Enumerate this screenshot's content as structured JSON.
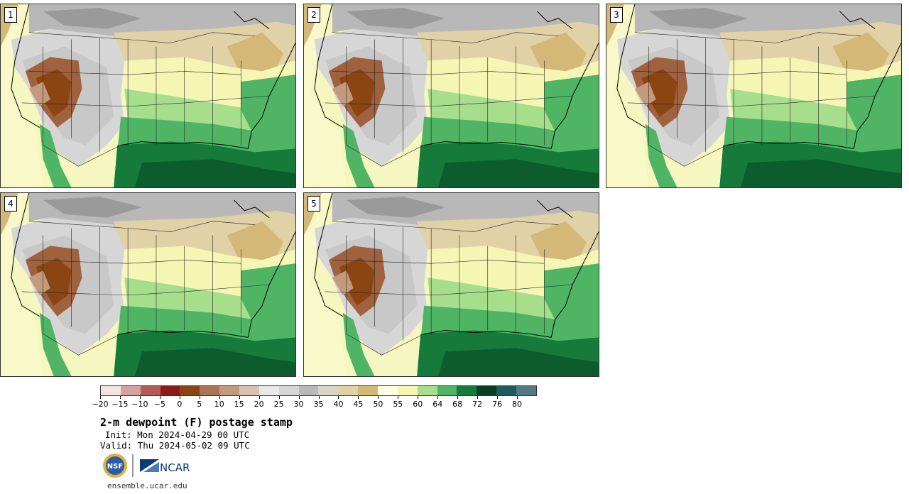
{
  "panels": [
    {
      "number": "1"
    },
    {
      "number": "2"
    },
    {
      "number": "3"
    },
    {
      "number": "4"
    },
    {
      "number": "5"
    }
  ],
  "colorbar": {
    "colors": [
      "#f3e4e4",
      "#d4a0a0",
      "#b05a5a",
      "#8b1a1a",
      "#8b4513",
      "#a97552",
      "#c49a7e",
      "#dcc0b0",
      "#e8e8e8",
      "#d6d6d6",
      "#b8b8b8",
      "#d9d4c6",
      "#e0d2a6",
      "#d4b878",
      "#fdfde0",
      "#f6f6b4",
      "#a6de8c",
      "#4fb564",
      "#157a3a",
      "#063f22",
      "#1f5a5e",
      "#527a80"
    ],
    "tick_labels": [
      "−20",
      "−15",
      "−10",
      "−5",
      "0",
      "5",
      "10",
      "15",
      "20",
      "25",
      "30",
      "35",
      "40",
      "45",
      "50",
      "55",
      "60",
      "64",
      "68",
      "72",
      "76",
      "80"
    ]
  },
  "title": "2-m dewpoint (F) postage stamp",
  "init": "Init: Mon 2024-04-29 00 UTC",
  "valid": "Valid: Thu 2024-05-02 09 UTC",
  "logos": {
    "nsf": "NSF",
    "ncar": "NCAR"
  },
  "website": "ensemble.ucar.edu"
}
